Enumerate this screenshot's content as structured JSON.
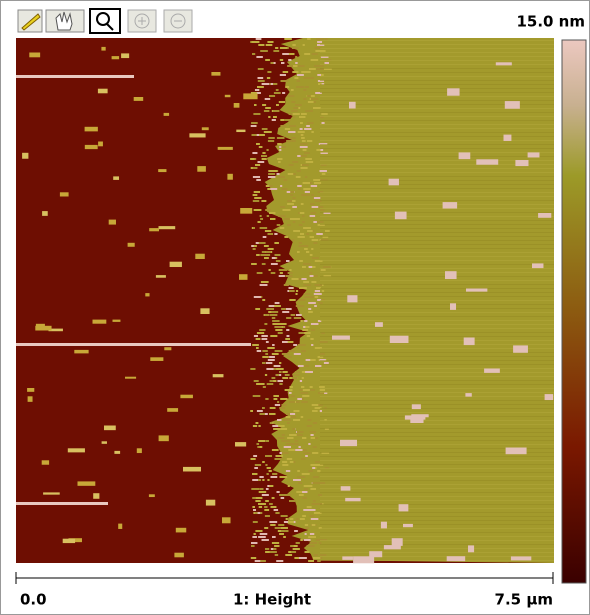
{
  "header": {
    "scale_max": "15.0 nm"
  },
  "footer": {
    "min": "0.0",
    "channel": "1: Height",
    "size": "7.5 µm"
  }
}
